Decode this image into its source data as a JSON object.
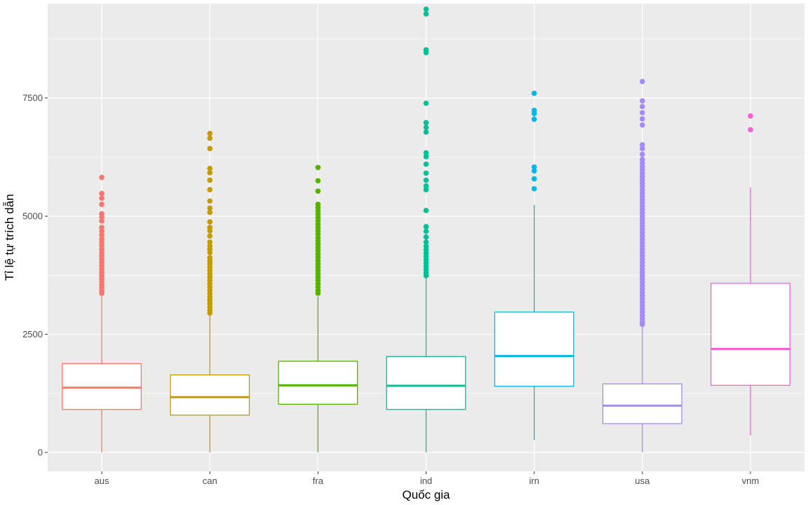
{
  "chart_data": {
    "type": "boxplot",
    "xlabel": "Quốc gia",
    "ylabel": "Tỉ lệ tự trích dẫn",
    "ylim": [
      -400,
      9500
    ],
    "yticks": [
      0,
      2500,
      5000,
      7500
    ],
    "ytick_labels": [
      "0",
      "2500",
      "5000",
      "7500"
    ],
    "grid": true,
    "categories": [
      "aus",
      "can",
      "fra",
      "ind",
      "irn",
      "usa",
      "vnm"
    ],
    "series": [
      {
        "category": "aus",
        "color": "#F8766D",
        "whisker_low": 0,
        "q1": 910,
        "median": 1370,
        "q3": 1880,
        "whisker_high": 3330,
        "outliers": [
          5820,
          5480,
          5380,
          5250,
          5050,
          4980,
          4900,
          4760,
          4680,
          4600,
          4520,
          4450,
          4380,
          4300,
          4230,
          4160,
          4090,
          4020,
          3950,
          3880,
          3810,
          3740,
          3670,
          3600,
          3540,
          3480,
          3420,
          3370
        ]
      },
      {
        "category": "can",
        "color": "#C49A00",
        "whisker_low": 0,
        "q1": 790,
        "median": 1170,
        "q3": 1640,
        "whisker_high": 2900,
        "outliers": [
          6750,
          6650,
          6430,
          6010,
          5920,
          5760,
          5560,
          5320,
          5170,
          5080,
          4880,
          4760,
          4690,
          4580,
          4450,
          4370,
          4300,
          4230,
          4120,
          4050,
          3990,
          3920,
          3850,
          3780,
          3710,
          3640,
          3570,
          3500,
          3430,
          3360,
          3290,
          3220,
          3150,
          3080,
          3010,
          2950
        ]
      },
      {
        "category": "fra",
        "color": "#53B400",
        "whisker_low": 0,
        "q1": 1020,
        "median": 1420,
        "q3": 1930,
        "whisker_high": 3300,
        "outliers": [
          6030,
          5750,
          5530,
          5250,
          5180,
          5110,
          5040,
          4970,
          4900,
          4830,
          4760,
          4690,
          4620,
          4550,
          4480,
          4410,
          4340,
          4270,
          4200,
          4130,
          4060,
          3990,
          3920,
          3850,
          3780,
          3710,
          3640,
          3570,
          3500,
          3430,
          3370
        ]
      },
      {
        "category": "ind",
        "color": "#00C094",
        "whisker_low": 0,
        "q1": 910,
        "median": 1410,
        "q3": 2030,
        "whisker_high": 3720,
        "outliers": [
          9380,
          9280,
          8520,
          8460,
          7390,
          6980,
          6880,
          6780,
          6340,
          6260,
          6100,
          5910,
          5760,
          5640,
          5560,
          5120,
          4780,
          4680,
          4560,
          4450,
          4360,
          4290,
          4220,
          4150,
          4080,
          4010,
          3940,
          3870,
          3800,
          3740
        ]
      },
      {
        "category": "irn",
        "color": "#00B6EB",
        "whisker_low": 260,
        "q1": 1400,
        "median": 2040,
        "q3": 2970,
        "whisker_high": 5240,
        "outliers": [
          7600,
          7240,
          7170,
          7050,
          6040,
          5960,
          5790,
          5580
        ]
      },
      {
        "category": "usa",
        "color": "#A58AFF",
        "whisker_low": 0,
        "q1": 610,
        "median": 990,
        "q3": 1450,
        "whisker_high": 2680,
        "outliers": [
          7850,
          7440,
          7320,
          7190,
          7060,
          6930,
          6510,
          6430,
          6310,
          6200,
          6120,
          6050,
          5980,
          5910,
          5840,
          5770,
          5700,
          5630,
          5560,
          5490,
          5420,
          5350,
          5280,
          5210,
          5140,
          5070,
          5000,
          4930,
          4860,
          4790,
          4720,
          4650,
          4580,
          4510,
          4440,
          4370,
          4300,
          4230,
          4160,
          4090,
          4020,
          3950,
          3880,
          3810,
          3740,
          3670,
          3600,
          3530,
          3460,
          3390,
          3320,
          3250,
          3180,
          3110,
          3040,
          2970,
          2900,
          2830,
          2760,
          2710
        ]
      },
      {
        "category": "vnm",
        "color": "#FB61D7",
        "whisker_low": 360,
        "q1": 1420,
        "median": 2190,
        "q3": 3580,
        "whisker_high": 5610,
        "outliers": [
          7120,
          6830
        ]
      }
    ]
  }
}
